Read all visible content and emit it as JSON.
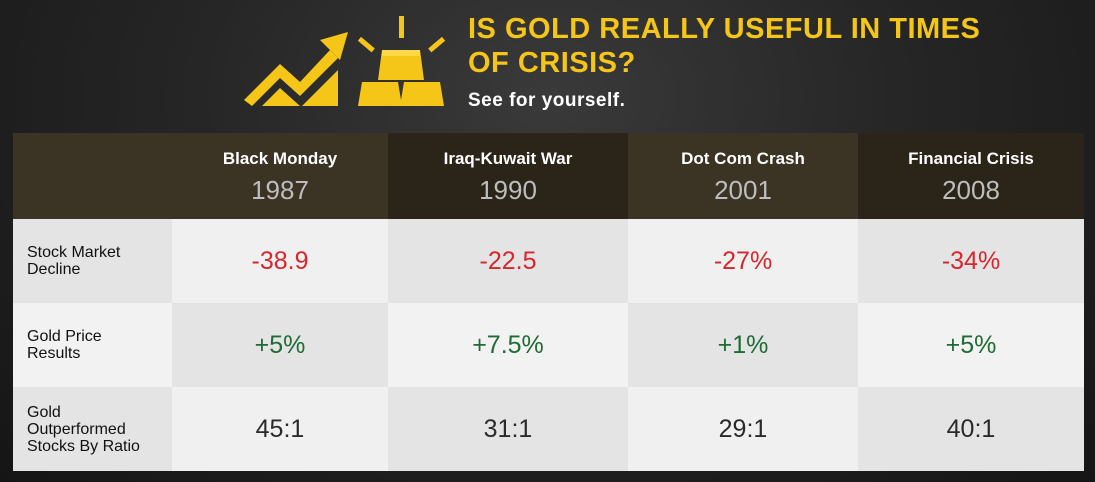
{
  "header": {
    "title": "IS GOLD REALLY USEFUL IN TIMES OF CRISIS?",
    "subtitle": "See for yourself."
  },
  "icons": {
    "chart": "rising-chart-arrow-icon",
    "gold": "gold-bars-icon"
  },
  "colors": {
    "accent": "#f5c518",
    "negative": "#d7262c",
    "positive": "#1f6b33",
    "header_bg": "#2b2419"
  },
  "table": {
    "columns": [
      {
        "name": "Black Monday",
        "year": "1987"
      },
      {
        "name": "Iraq-Kuwait War",
        "year": "1990"
      },
      {
        "name": "Dot Com Crash",
        "year": "2001"
      },
      {
        "name": "Financial Crisis",
        "year": "2008"
      }
    ],
    "rows": [
      {
        "label": "Stock Market Decline",
        "values": [
          "-38.9",
          "-22.5",
          "-27%",
          "-34%"
        ]
      },
      {
        "label": "Gold Price Results",
        "values": [
          "+5%",
          "+7.5%",
          "+1%",
          "+5%"
        ]
      },
      {
        "label": "Gold Outperformed Stocks By Ratio",
        "values": [
          "45:1",
          "31:1",
          "29:1",
          "40:1"
        ]
      }
    ]
  }
}
